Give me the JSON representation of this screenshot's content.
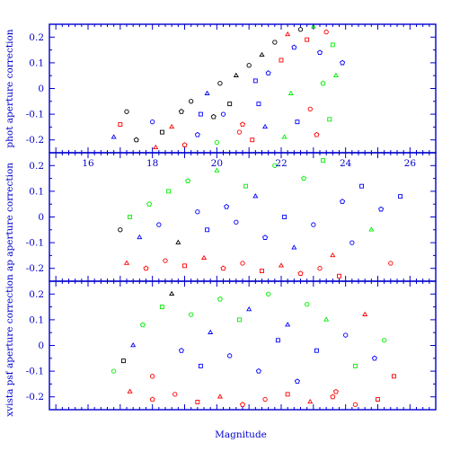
{
  "chart_data": [
    {
      "type": "scatter",
      "ylabel": "phot aperture correction",
      "ylim": [
        -0.25,
        0.25
      ],
      "yticks": [
        0.2,
        0.1,
        0,
        -0.1,
        -0.2
      ],
      "xlim": [
        14.8,
        26.8
      ],
      "xticks": [],
      "colors": {
        "r": "#ff0000",
        "g": "#00ee00",
        "b": "#0000ff",
        "k": "#000000"
      },
      "series": [],
      "points": [
        [
          17.2,
          -0.09,
          "k"
        ],
        [
          17.0,
          -0.14,
          "r"
        ],
        [
          16.8,
          -0.19,
          "b"
        ],
        [
          17.5,
          -0.2,
          "k"
        ],
        [
          18.0,
          -0.13,
          "b"
        ],
        [
          18.3,
          -0.17,
          "k"
        ],
        [
          18.6,
          -0.15,
          "r"
        ],
        [
          18.9,
          -0.09,
          "k"
        ],
        [
          19.2,
          -0.05,
          "k"
        ],
        [
          19.5,
          -0.1,
          "b"
        ],
        [
          19.7,
          -0.02,
          "b"
        ],
        [
          19.9,
          -0.11,
          "k"
        ],
        [
          20.1,
          0.02,
          "k"
        ],
        [
          20.4,
          -0.06,
          "k"
        ],
        [
          20.6,
          0.05,
          "k"
        ],
        [
          20.8,
          -0.14,
          "r"
        ],
        [
          21.0,
          0.09,
          "k"
        ],
        [
          21.2,
          0.03,
          "b"
        ],
        [
          21.4,
          0.13,
          "k"
        ],
        [
          21.6,
          0.06,
          "b"
        ],
        [
          21.8,
          0.18,
          "k"
        ],
        [
          22.0,
          0.11,
          "r"
        ],
        [
          22.2,
          0.21,
          "r"
        ],
        [
          22.4,
          0.16,
          "b"
        ],
        [
          22.6,
          0.23,
          "k"
        ],
        [
          22.8,
          0.19,
          "r"
        ],
        [
          23.0,
          0.24,
          "g"
        ],
        [
          23.2,
          0.14,
          "b"
        ],
        [
          23.4,
          0.22,
          "r"
        ],
        [
          23.6,
          0.17,
          "g"
        ],
        [
          18.1,
          -0.23,
          "r"
        ],
        [
          19.0,
          -0.22,
          "r"
        ],
        [
          20.0,
          -0.21,
          "g"
        ],
        [
          21.1,
          -0.2,
          "r"
        ],
        [
          22.1,
          -0.19,
          "g"
        ],
        [
          23.1,
          -0.18,
          "r"
        ],
        [
          20.2,
          -0.1,
          "b"
        ],
        [
          21.3,
          -0.06,
          "b"
        ],
        [
          22.3,
          -0.02,
          "g"
        ],
        [
          23.3,
          0.02,
          "g"
        ],
        [
          22.9,
          -0.08,
          "r"
        ],
        [
          23.5,
          -0.12,
          "g"
        ],
        [
          21.5,
          -0.15,
          "b"
        ],
        [
          19.4,
          -0.18,
          "b"
        ],
        [
          20.7,
          -0.17,
          "r"
        ],
        [
          22.5,
          -0.13,
          "b"
        ],
        [
          23.7,
          0.05,
          "g"
        ],
        [
          23.9,
          0.1,
          "b"
        ]
      ]
    },
    {
      "type": "scatter",
      "ylabel": "ap aperture correction",
      "ylim": [
        -0.25,
        0.25
      ],
      "yticks": [
        0.2,
        0.1,
        0,
        -0.1,
        -0.2
      ],
      "xlim": [
        14.8,
        26.8
      ],
      "xticks": [
        16,
        18,
        20,
        22,
        24,
        26
      ],
      "colors": {
        "r": "#ff0000",
        "g": "#00ee00",
        "b": "#0000ff",
        "k": "#000000"
      },
      "series": [],
      "points": [
        [
          17.0,
          -0.05,
          "k"
        ],
        [
          17.3,
          0.0,
          "g"
        ],
        [
          17.6,
          -0.08,
          "b"
        ],
        [
          17.9,
          0.05,
          "g"
        ],
        [
          18.2,
          -0.03,
          "b"
        ],
        [
          18.5,
          0.1,
          "g"
        ],
        [
          18.8,
          -0.1,
          "k"
        ],
        [
          19.1,
          0.14,
          "g"
        ],
        [
          19.4,
          0.02,
          "b"
        ],
        [
          19.7,
          -0.05,
          "b"
        ],
        [
          20.0,
          0.18,
          "g"
        ],
        [
          20.3,
          0.04,
          "b"
        ],
        [
          20.6,
          -0.02,
          "b"
        ],
        [
          20.9,
          0.12,
          "g"
        ],
        [
          21.2,
          0.08,
          "b"
        ],
        [
          21.5,
          -0.08,
          "b"
        ],
        [
          21.8,
          0.2,
          "g"
        ],
        [
          22.1,
          0.0,
          "b"
        ],
        [
          22.4,
          -0.12,
          "b"
        ],
        [
          22.7,
          0.15,
          "g"
        ],
        [
          23.0,
          -0.03,
          "b"
        ],
        [
          23.3,
          0.22,
          "g"
        ],
        [
          23.6,
          -0.15,
          "r"
        ],
        [
          23.9,
          0.06,
          "b"
        ],
        [
          24.2,
          -0.1,
          "b"
        ],
        [
          24.5,
          0.12,
          "b"
        ],
        [
          24.8,
          -0.05,
          "g"
        ],
        [
          25.1,
          0.03,
          "b"
        ],
        [
          25.4,
          -0.18,
          "r"
        ],
        [
          25.7,
          0.08,
          "b"
        ],
        [
          17.2,
          -0.18,
          "r"
        ],
        [
          17.8,
          -0.2,
          "r"
        ],
        [
          18.4,
          -0.17,
          "r"
        ],
        [
          19.0,
          -0.19,
          "r"
        ],
        [
          19.6,
          -0.16,
          "r"
        ],
        [
          20.2,
          -0.2,
          "r"
        ],
        [
          20.8,
          -0.18,
          "r"
        ],
        [
          21.4,
          -0.21,
          "r"
        ],
        [
          22.0,
          -0.19,
          "r"
        ],
        [
          22.6,
          -0.22,
          "r"
        ],
        [
          23.2,
          -0.2,
          "r"
        ],
        [
          23.8,
          -0.23,
          "r"
        ]
      ]
    },
    {
      "type": "scatter",
      "ylabel": "xvista psf aperture correction",
      "xlabel": "Magnitude",
      "ylim": [
        -0.25,
        0.25
      ],
      "yticks": [
        0.2,
        0.1,
        0,
        -0.1,
        -0.2
      ],
      "xlim": [
        14.8,
        26.8
      ],
      "xticks": [],
      "colors": {
        "r": "#ff0000",
        "g": "#00ee00",
        "b": "#0000ff",
        "k": "#000000"
      },
      "series": [],
      "points": [
        [
          16.8,
          -0.1,
          "g"
        ],
        [
          17.1,
          -0.06,
          "k"
        ],
        [
          17.4,
          0.0,
          "b"
        ],
        [
          17.7,
          0.08,
          "g"
        ],
        [
          18.0,
          -0.12,
          "r"
        ],
        [
          18.3,
          0.15,
          "g"
        ],
        [
          18.6,
          0.2,
          "k"
        ],
        [
          18.9,
          -0.02,
          "b"
        ],
        [
          19.2,
          0.12,
          "g"
        ],
        [
          19.5,
          -0.08,
          "b"
        ],
        [
          19.8,
          0.05,
          "b"
        ],
        [
          20.1,
          0.18,
          "g"
        ],
        [
          20.4,
          -0.04,
          "b"
        ],
        [
          20.7,
          0.1,
          "g"
        ],
        [
          21.0,
          0.14,
          "b"
        ],
        [
          21.3,
          -0.1,
          "b"
        ],
        [
          21.6,
          0.2,
          "g"
        ],
        [
          21.9,
          0.02,
          "b"
        ],
        [
          22.2,
          0.08,
          "b"
        ],
        [
          22.5,
          -0.14,
          "b"
        ],
        [
          22.8,
          0.16,
          "g"
        ],
        [
          23.1,
          -0.02,
          "b"
        ],
        [
          23.4,
          0.1,
          "g"
        ],
        [
          23.7,
          -0.18,
          "r"
        ],
        [
          24.0,
          0.04,
          "b"
        ],
        [
          24.3,
          -0.08,
          "g"
        ],
        [
          24.6,
          0.12,
          "r"
        ],
        [
          24.9,
          -0.05,
          "b"
        ],
        [
          25.2,
          0.02,
          "g"
        ],
        [
          25.5,
          -0.12,
          "r"
        ],
        [
          17.3,
          -0.18,
          "r"
        ],
        [
          18.0,
          -0.21,
          "r"
        ],
        [
          18.7,
          -0.19,
          "r"
        ],
        [
          19.4,
          -0.22,
          "r"
        ],
        [
          20.1,
          -0.2,
          "r"
        ],
        [
          20.8,
          -0.23,
          "r"
        ],
        [
          21.5,
          -0.21,
          "r"
        ],
        [
          22.2,
          -0.19,
          "r"
        ],
        [
          22.9,
          -0.22,
          "r"
        ],
        [
          23.6,
          -0.2,
          "r"
        ],
        [
          24.3,
          -0.23,
          "r"
        ],
        [
          25.0,
          -0.21,
          "r"
        ]
      ]
    }
  ]
}
